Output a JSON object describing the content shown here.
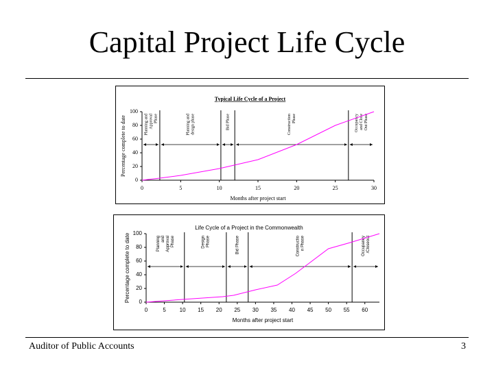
{
  "title": "Capital Project Life Cycle",
  "footer": "Auditor of Public Accounts",
  "page_number": "3",
  "chart_data": [
    {
      "type": "line",
      "title": "Typical Life Cycle of a Project",
      "x_label": "Months after project start",
      "y_label": "Percentage complete to date",
      "x": [
        0,
        2.3,
        5,
        10,
        15,
        20,
        25,
        30
      ],
      "series": [
        {
          "color": "#ff00ff",
          "values": [
            0,
            3,
            7,
            17,
            30,
            52,
            80,
            100
          ]
        }
      ],
      "xlim": [
        0,
        30
      ],
      "xticks": [
        0,
        5,
        10,
        15,
        20,
        25,
        30
      ],
      "ylim": [
        0,
        100
      ],
      "yticks": [
        0,
        20,
        40,
        60,
        80,
        100
      ],
      "phase_boundaries": [
        2.3,
        10.2,
        12,
        26.7
      ],
      "phases": [
        [
          "Planning and",
          "Approval",
          "Phase"
        ],
        [
          "Planning and",
          "design  phase"
        ],
        [
          "Bid Phase"
        ],
        [
          "Construction",
          "Phase"
        ],
        [
          "Occupancy",
          "and Close",
          "Out Phase"
        ]
      ]
    },
    {
      "type": "line",
      "title": "Life Cycle of a Project in the Commonwealth",
      "x_label": "Months after project start",
      "y_label": "Percentage complete to date",
      "x": [
        0,
        10,
        21,
        24,
        30,
        36,
        41,
        45,
        50,
        56,
        64
      ],
      "series": [
        {
          "color": "#ff00ff",
          "values": [
            0,
            4,
            8,
            10,
            18,
            25,
            42,
            58,
            78,
            87,
            100
          ]
        }
      ],
      "xlim": [
        0,
        64
      ],
      "xticks": [
        0,
        5,
        10,
        15,
        20,
        25,
        30,
        35,
        40,
        45,
        50,
        55,
        60
      ],
      "ylim": [
        0,
        100
      ],
      "yticks": [
        0,
        20,
        40,
        60,
        80,
        100
      ],
      "phase_boundaries": [
        10.5,
        22,
        28,
        56.5
      ],
      "phases": [
        [
          "Planning",
          "and",
          "Approval",
          "Phase"
        ],
        [
          "Design",
          "Phase"
        ],
        [
          "Bid Phase"
        ],
        [
          "Constructio",
          "n Phase"
        ],
        [
          "Occupancy",
          "/Closeout"
        ]
      ]
    }
  ]
}
